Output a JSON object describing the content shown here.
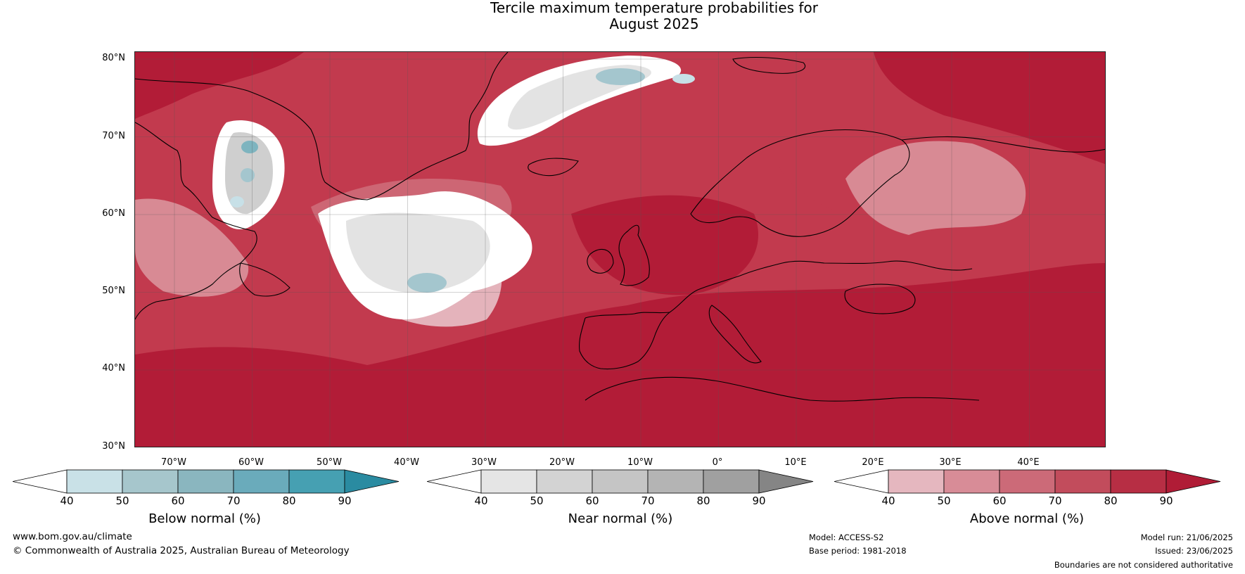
{
  "title": {
    "line1": "Tercile maximum temperature probabilities for",
    "line2": "August 2025"
  },
  "map": {
    "latitude_labels": [
      "80°N",
      "70°N",
      "60°N",
      "50°N",
      "40°N",
      "30°N"
    ],
    "longitude_labels": [
      "70°W",
      "60°W",
      "50°W",
      "40°W",
      "30°W",
      "20°W",
      "10°W",
      "0°",
      "10°E",
      "20°E",
      "30°E",
      "40°E"
    ],
    "colors": {
      "ocean_base": "#c9606e",
      "above_90": "#b21c37",
      "above_80": "#c23a4e",
      "above_70": "#cd6674",
      "above_60": "#d88a94",
      "above_50": "#e4b3bb",
      "near_40": "#ffffff",
      "near_50": "#e3e3e3",
      "near_60": "#cfcfcf",
      "near_70": "#bdbdbd",
      "below_50": "#c7e0e7",
      "below_60": "#a4c6ce",
      "below_70": "#7eb4bf",
      "coastline": "#000000",
      "borders": "#888888"
    }
  },
  "colorbars": [
    {
      "label": "Below normal (%)",
      "ticks": [
        "40",
        "50",
        "60",
        "70",
        "80",
        "90"
      ],
      "colors": [
        "#ffffff",
        "#c9e1e7",
        "#a6c6cc",
        "#8ab6bf",
        "#6aabbb",
        "#46a0b2",
        "#2a8ba1"
      ]
    },
    {
      "label": "Near normal (%)",
      "ticks": [
        "40",
        "50",
        "60",
        "70",
        "80",
        "90"
      ],
      "colors": [
        "#ffffff",
        "#e5e5e5",
        "#d3d3d3",
        "#c5c5c5",
        "#b4b4b4",
        "#a0a0a0",
        "#858585"
      ]
    },
    {
      "label": "Above normal (%)",
      "ticks": [
        "40",
        "50",
        "60",
        "70",
        "80",
        "90"
      ],
      "colors": [
        "#ffffff",
        "#e5b7bf",
        "#d88c97",
        "#cc6a78",
        "#c24c5c",
        "#b72e44",
        "#b01c36"
      ]
    }
  ],
  "footer": {
    "website": "www.bom.gov.au/climate",
    "copyright": "© Commonwealth of Australia 2025, Australian Bureau of Meteorology",
    "model": "Model: ACCESS-S2",
    "base_period": "Base period: 1981-2018",
    "model_run": "Model run: 21/06/2025",
    "issued": "Issued: 23/06/2025",
    "disclaimer": "Boundaries are not considered authoritative"
  }
}
